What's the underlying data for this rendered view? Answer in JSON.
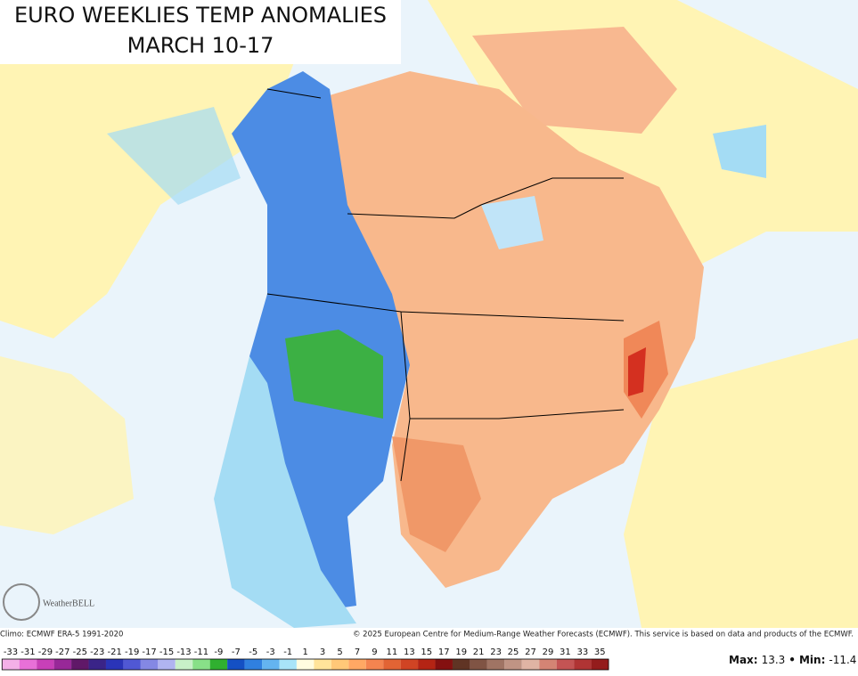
{
  "header": {
    "title_line1": "EURO WEEKLIES TEMP ANOMALIES",
    "title_line2": "MARCH 10-17"
  },
  "logo": {
    "text": "WeatherBELL"
  },
  "footer": {
    "climo": "Climo: ECMWF ERA-5 1991-2020",
    "credit": "© 2025 European Centre for Medium-Range Weather Forecasts (ECMWF). This service is based on data and products of the ECMWF."
  },
  "colorbar": {
    "ticks": [
      -33,
      -31,
      -29,
      -27,
      -25,
      -23,
      -21,
      -19,
      -17,
      -15,
      -13,
      -11,
      -9,
      -7,
      -5,
      -3,
      -1,
      1,
      3,
      5,
      7,
      9,
      11,
      13,
      15,
      17,
      19,
      21,
      23,
      25,
      27,
      29,
      31,
      33,
      35
    ],
    "colors": [
      "#f4b0e8",
      "#e870d8",
      "#c840b8",
      "#982898",
      "#601868",
      "#3a2488",
      "#2a34b8",
      "#5058d4",
      "#8488e4",
      "#b0b4f0",
      "#c8f0c8",
      "#88e088",
      "#30b030",
      "#1450c4",
      "#3080e0",
      "#64b4f0",
      "#a8e4f8",
      "#fffce0",
      "#ffe49a",
      "#ffc878",
      "#ffa864",
      "#f48450",
      "#e26434",
      "#d04424",
      "#b42414",
      "#841010",
      "#603424",
      "#805444",
      "#a07464",
      "#c09484",
      "#e0b4a4",
      "#d48474",
      "#c45454",
      "#b03434",
      "#941c1c"
    ]
  },
  "extremes": {
    "max_label": "Max:",
    "max": 13.3,
    "separator": "•",
    "min_label": "Min:",
    "min": -11.4
  }
}
